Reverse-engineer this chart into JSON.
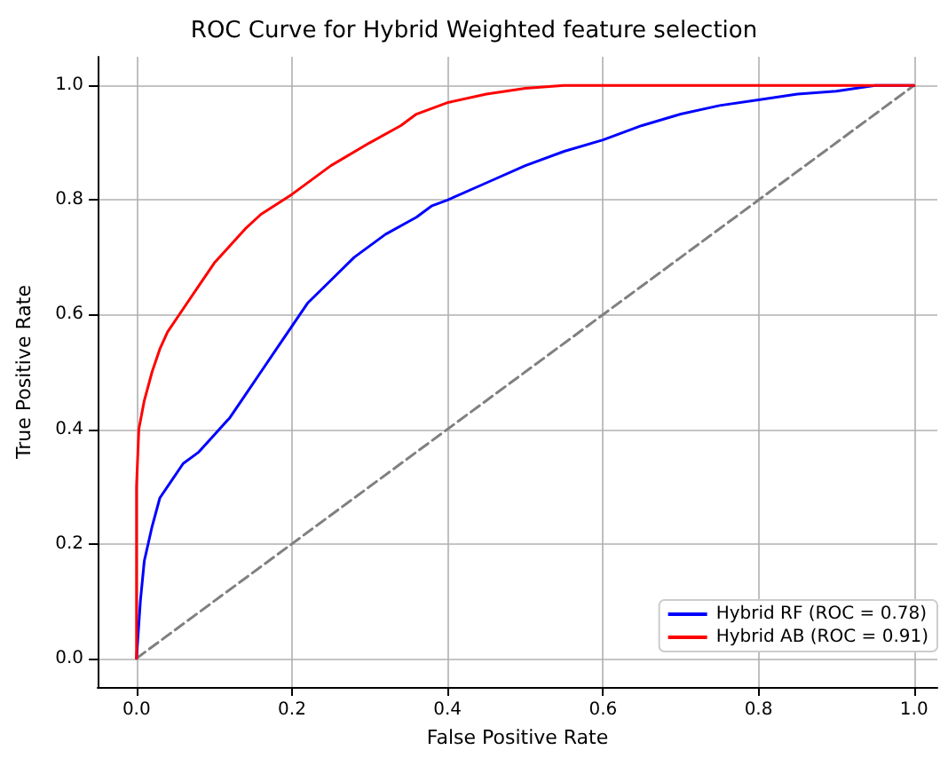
{
  "chart_data": {
    "type": "line",
    "title": "ROC Curve for Hybrid Weighted feature selection",
    "xlabel": "False Positive Rate",
    "ylabel": "True Positive Rate",
    "xlim": [
      -0.05,
      1.03
    ],
    "ylim": [
      -0.05,
      1.05
    ],
    "xticks": [
      {
        "value": 0,
        "label": "0.0"
      },
      0.2,
      0.4,
      0.6,
      0.8,
      {
        "value": 1,
        "label": "1.0"
      }
    ],
    "yticks": [
      {
        "value": 0,
        "label": "0.0"
      },
      0.2,
      0.4,
      0.6,
      0.8,
      {
        "value": 1,
        "label": "1.0"
      }
    ],
    "grid": true,
    "legend": "bottom right",
    "marker": "none",
    "series": [
      {
        "name": "Hybrid RF (ROC = 0.78)",
        "color": "#0000ff",
        "x": [
          0,
          0.005,
          0.01,
          0.02,
          0.03,
          0.045,
          0.06,
          0.08,
          0.1,
          0.12,
          0.14,
          0.16,
          0.18,
          0.2,
          0.22,
          0.25,
          0.28,
          0.32,
          0.36,
          0.38,
          0.4,
          0.45,
          0.5,
          0.55,
          0.6,
          0.65,
          0.7,
          0.75,
          0.8,
          0.85,
          0.9,
          0.95,
          1.0
        ],
        "values": [
          0,
          0.1,
          0.17,
          0.23,
          0.28,
          0.31,
          0.34,
          0.36,
          0.39,
          0.42,
          0.46,
          0.5,
          0.54,
          0.58,
          0.62,
          0.66,
          0.7,
          0.74,
          0.77,
          0.79,
          0.8,
          0.83,
          0.86,
          0.885,
          0.905,
          0.93,
          0.95,
          0.965,
          0.975,
          0.985,
          0.99,
          1.0,
          1.0
        ]
      },
      {
        "name": "Hybrid AB (ROC = 0.91)",
        "color": "#ff0000",
        "x": [
          0,
          0,
          0.003,
          0.01,
          0.02,
          0.03,
          0.04,
          0.06,
          0.08,
          0.1,
          0.12,
          0.14,
          0.16,
          0.2,
          0.25,
          0.3,
          0.34,
          0.36,
          0.4,
          0.45,
          0.5,
          0.55,
          1.0
        ],
        "values": [
          0,
          0.3,
          0.4,
          0.45,
          0.5,
          0.54,
          0.57,
          0.61,
          0.65,
          0.69,
          0.72,
          0.75,
          0.775,
          0.81,
          0.86,
          0.9,
          0.93,
          0.95,
          0.97,
          0.985,
          0.995,
          1.0,
          1.0
        ]
      },
      {
        "color": "#808080",
        "line_style": "dashed",
        "x": [
          0,
          1
        ],
        "values": [
          0,
          1
        ]
      }
    ]
  }
}
